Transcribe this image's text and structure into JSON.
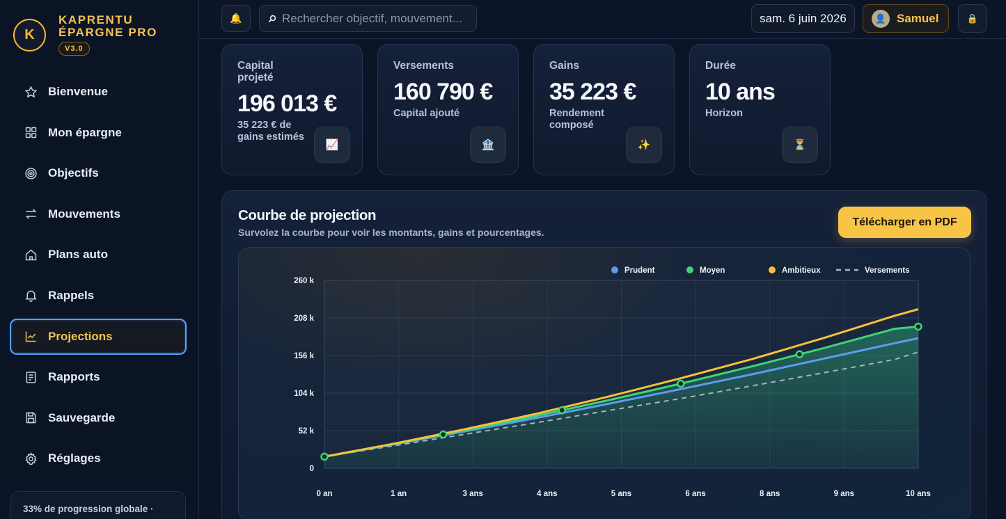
{
  "brand": {
    "initial": "K",
    "name": "KAPRENTU ÉPARGNE PRO",
    "version": "V3.0"
  },
  "nav": [
    {
      "label": "Bienvenue",
      "icon": "star-icon"
    },
    {
      "label": "Mon épargne",
      "icon": "grid-icon"
    },
    {
      "label": "Objectifs",
      "icon": "target-icon"
    },
    {
      "label": "Mouvements",
      "icon": "transfer-icon"
    },
    {
      "label": "Plans auto",
      "icon": "home-icon"
    },
    {
      "label": "Rappels",
      "icon": "bell-icon"
    },
    {
      "label": "Projections",
      "icon": "trend-icon",
      "active": true
    },
    {
      "label": "Rapports",
      "icon": "report-icon"
    },
    {
      "label": "Sauvegarde",
      "icon": "save-icon"
    },
    {
      "label": "Réglages",
      "icon": "gear-icon"
    }
  ],
  "progress": {
    "text": "33% de progression globale ·"
  },
  "topbar": {
    "search_placeholder": "Rechercher objectif, mouvement...",
    "date": "sam. 6 juin 2026",
    "user": "Samuel"
  },
  "kpis": [
    {
      "label": "Capital projeté",
      "value": "196 013 €",
      "sub": "35 223 € de gains estimés",
      "icon": "chart-up-icon",
      "glyph": "📈"
    },
    {
      "label": "Versements",
      "value": "160 790 €",
      "sub": "Capital ajouté",
      "icon": "bank-icon",
      "glyph": "🏦"
    },
    {
      "label": "Gains",
      "value": "35 223 €",
      "sub": "Rendement composé",
      "icon": "sparkles-icon",
      "glyph": "✨"
    },
    {
      "label": "Durée",
      "value": "10 ans",
      "sub": "Horizon",
      "icon": "hourglass-icon",
      "glyph": "⏳"
    }
  ],
  "panel": {
    "title": "Courbe de projection",
    "subtitle": "Survolez la courbe pour voir les montants, gains et pourcentages.",
    "pdf_button": "Télécharger en PDF"
  },
  "chart_data": {
    "type": "line",
    "x": [
      0,
      1.2,
      2.4,
      3.6,
      4.8,
      6.0,
      7.2,
      8.4,
      9.6,
      10
    ],
    "x_ticks": [
      "0 an",
      "1 an",
      "3 ans",
      "4 ans",
      "5 ans",
      "6 ans",
      "8 ans",
      "9 ans",
      "10 ans"
    ],
    "y_ticks": [
      "0",
      "52 k",
      "104 k",
      "156 k",
      "208 k",
      "260 k"
    ],
    "ylim": [
      0,
      260000
    ],
    "xlim": [
      0,
      10
    ],
    "legend_position": "top-right",
    "grid": true,
    "series": [
      {
        "name": "Prudent",
        "color": "#5b9cf0",
        "style": "solid",
        "values": [
          16000,
          33500,
          51500,
          70000,
          89500,
          109500,
          130000,
          151500,
          173000,
          180000
        ]
      },
      {
        "name": "Moyen",
        "color": "#3ed47a",
        "style": "solid",
        "markers": true,
        "values": [
          16000,
          34000,
          53000,
          73000,
          94500,
          117000,
          141000,
          166000,
          193000,
          196013
        ]
      },
      {
        "name": "Ambitieux",
        "color": "#f6c13a",
        "style": "solid",
        "values": [
          16000,
          34500,
          54500,
          76000,
          99500,
          124500,
          151000,
          180000,
          211000,
          220000
        ]
      },
      {
        "name": "Versements",
        "color": "#a9b4c6",
        "style": "dashed",
        "values": [
          16000,
          31500,
          47500,
          63500,
          80000,
          96500,
          114000,
          132000,
          150500,
          160790
        ]
      }
    ],
    "moyen_marker_x": [
      0,
      2,
      4,
      6,
      8,
      10
    ]
  }
}
